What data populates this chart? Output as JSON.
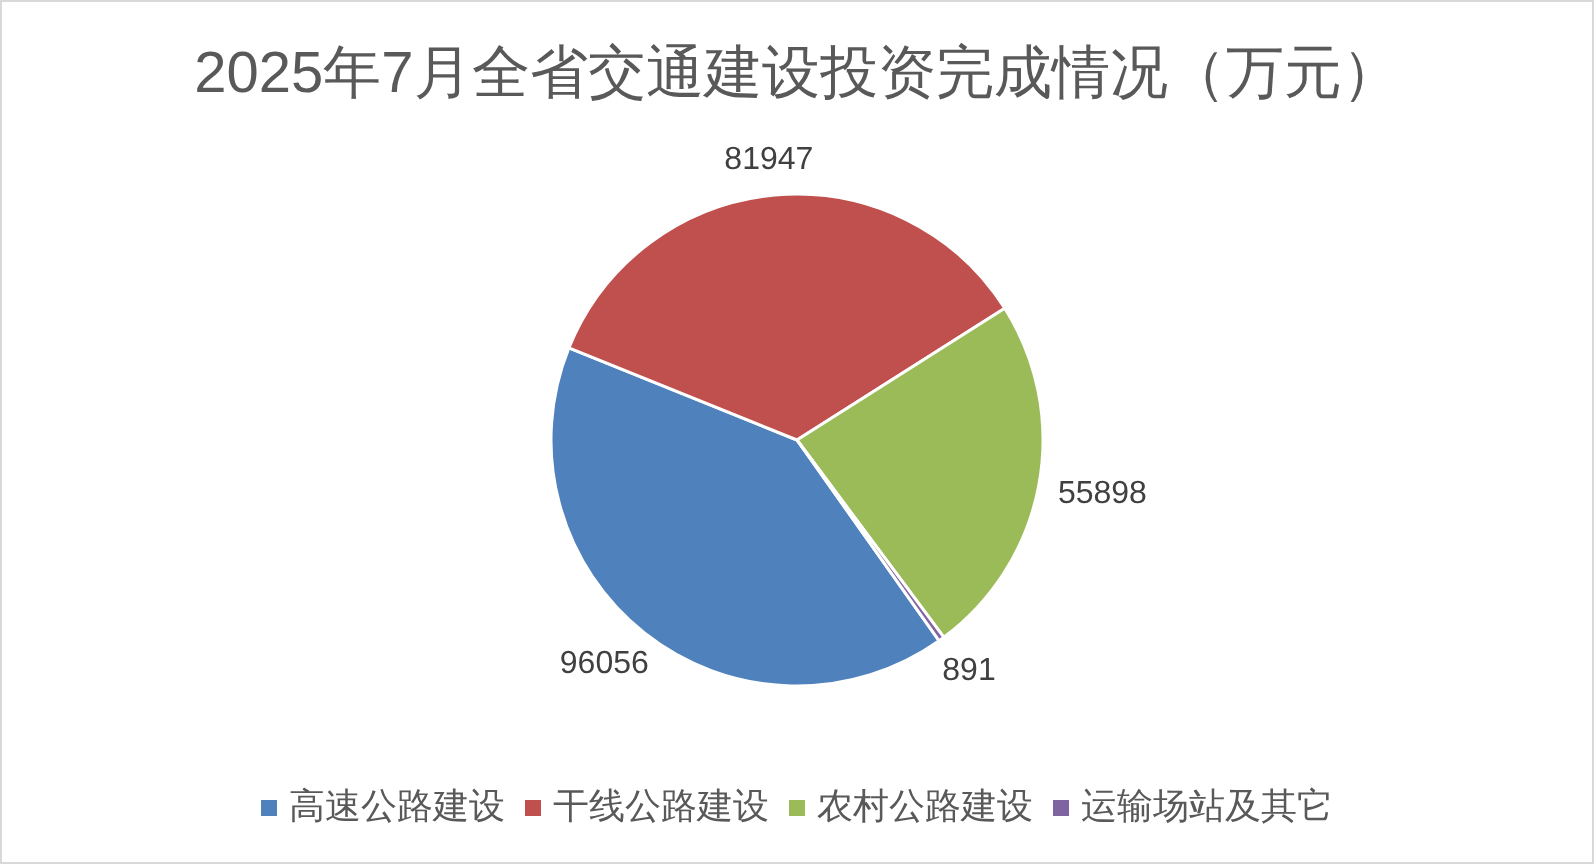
{
  "chart_data": {
    "type": "pie",
    "title": "2025年7月全省交通建设投资完成情况（万元）",
    "categories": [
      "高速公路建设",
      "干线公路建设",
      "农村公路建设",
      "运输场站及其它"
    ],
    "values": [
      96056,
      81947,
      55898,
      891
    ],
    "colors": [
      "#4f81bd",
      "#c0504d",
      "#9bbb59",
      "#8064a2"
    ],
    "data_labels": true,
    "legend": "bottom"
  }
}
